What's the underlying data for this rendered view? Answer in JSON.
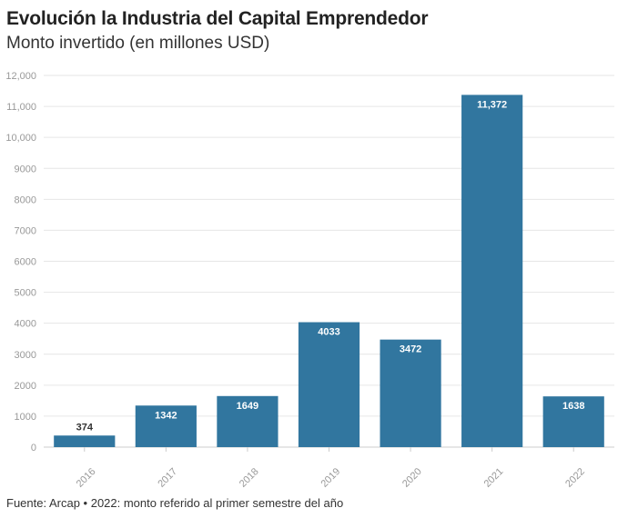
{
  "title": "Evolución la Industria del Capital Emprendedor",
  "subtitle": "Monto invertido (en millones USD)",
  "footer": "Fuente: Arcap • 2022: monto referido al primer semestre del año",
  "colors": {
    "bar": "#31769f",
    "grid": "#e6e6e6",
    "axis": "#999999",
    "label_inside": "#ffffff",
    "label_outside": "#333333"
  },
  "chart_data": {
    "type": "bar",
    "title": "Evolución la Industria del Capital Emprendedor",
    "subtitle": "Monto invertido (en millones USD)",
    "xlabel": "",
    "ylabel": "",
    "categories": [
      "2016",
      "2017",
      "2018",
      "2019",
      "2020",
      "2021",
      "2022"
    ],
    "values": [
      374,
      1342,
      1649,
      4033,
      3472,
      11372,
      1638
    ],
    "data_labels": [
      "374",
      "1342",
      "1649",
      "4033",
      "3472",
      "11,372",
      "1638"
    ],
    "ylim": [
      0,
      12000
    ],
    "yticks": [
      0,
      1000,
      2000,
      3000,
      4000,
      5000,
      6000,
      7000,
      8000,
      9000,
      10000,
      11000,
      12000
    ],
    "ytick_labels": [
      "0",
      "1000",
      "2000",
      "3000",
      "4000",
      "5000",
      "6000",
      "7000",
      "8000",
      "9000",
      "10,000",
      "11,000",
      "12,000"
    ],
    "grid": true,
    "legend": "none"
  }
}
